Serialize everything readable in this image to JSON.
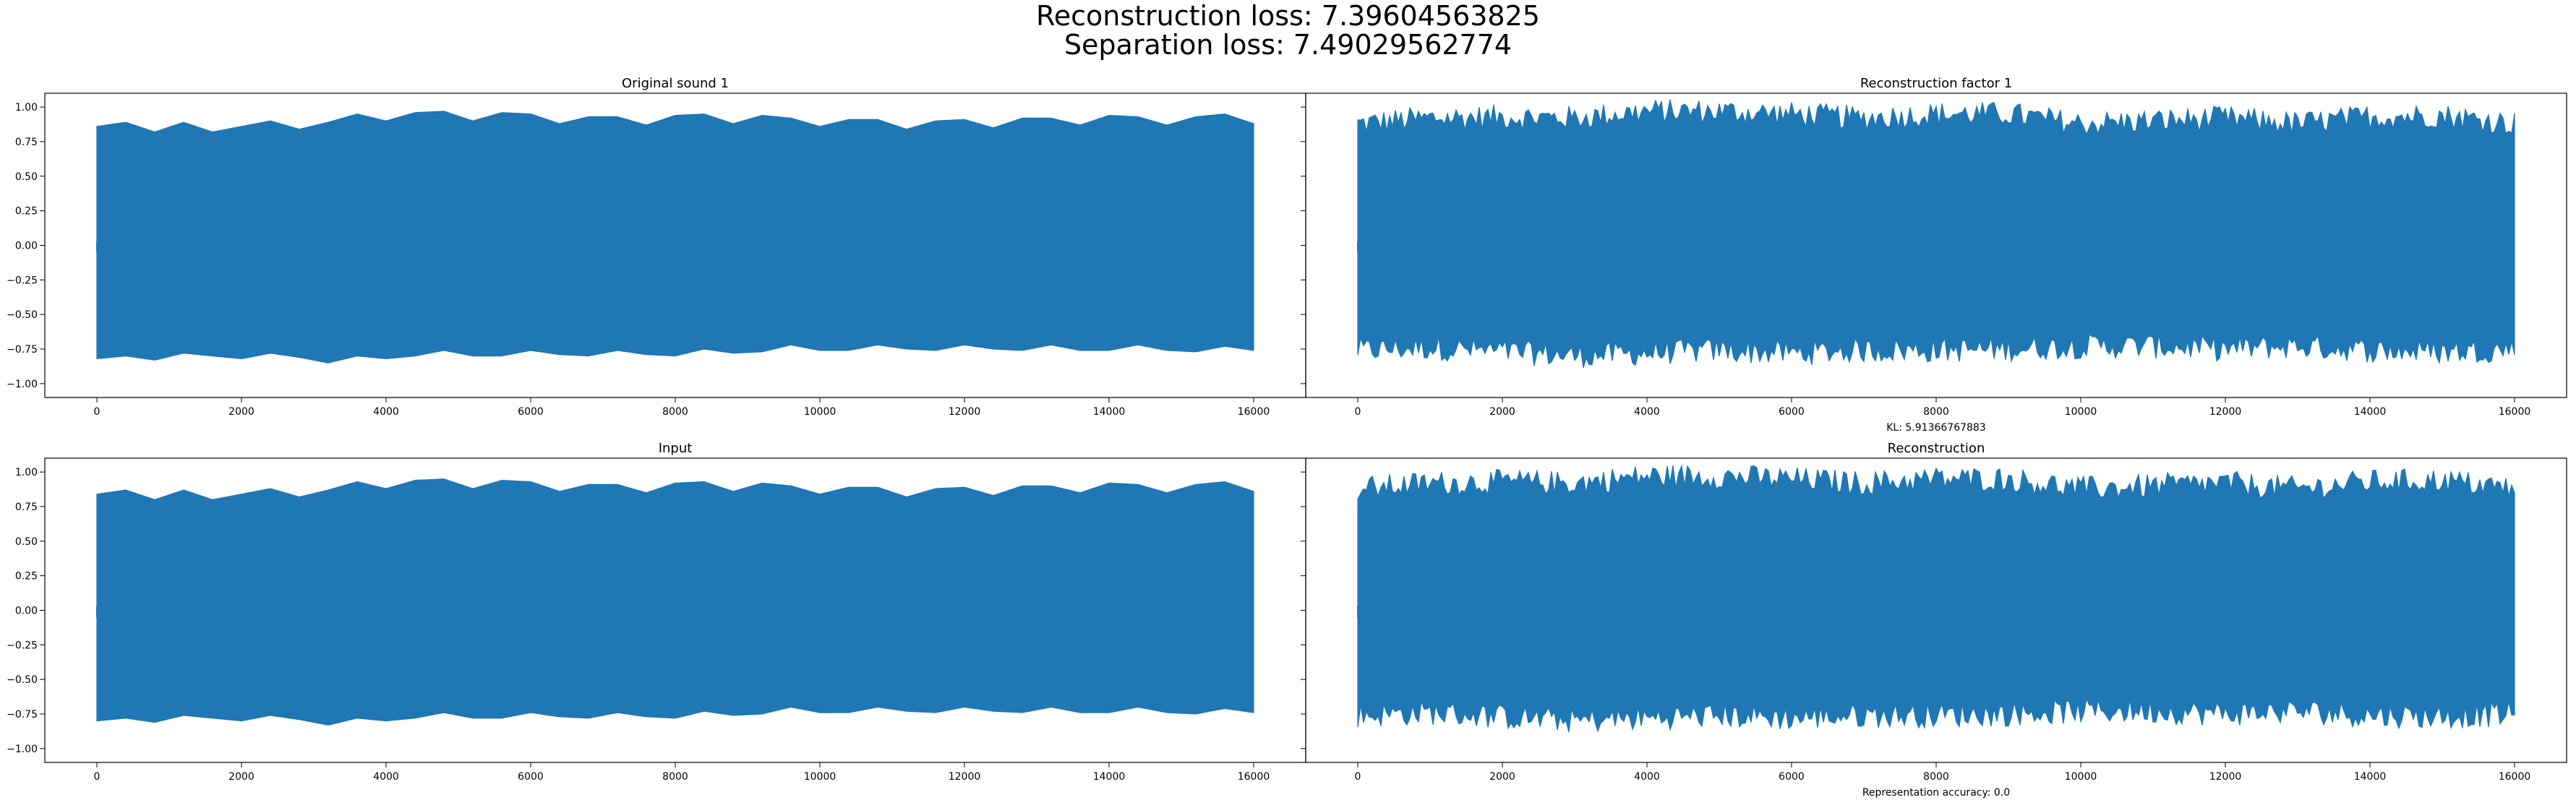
{
  "figure": {
    "suptitle_line1": "Reconstruction loss: 7.39604563825",
    "suptitle_line2": "Separation loss: 7.49029562774",
    "line_color": "#1f77b4"
  },
  "chart_data": [
    {
      "type": "line",
      "title": "Original sound 1",
      "xlabel": "",
      "ylabel": "",
      "xlim": [
        -720,
        16720
      ],
      "ylim": [
        -1.1,
        1.1
      ],
      "xticks": [
        0,
        2000,
        4000,
        6000,
        8000,
        10000,
        12000,
        14000,
        16000
      ],
      "yticks": [
        -1.0,
        -0.75,
        -0.5,
        -0.25,
        0.0,
        0.25,
        0.5,
        0.75,
        1.0
      ],
      "ytick_labels": [
        "−1.00",
        "−0.75",
        "−0.50",
        "−0.25",
        "0.00",
        "0.25",
        "0.50",
        "0.75",
        "1.00"
      ],
      "x_range": [
        0,
        16000
      ],
      "envelope_top": [
        [
          0,
          0.86
        ],
        [
          400,
          0.89
        ],
        [
          800,
          0.82
        ],
        [
          1200,
          0.89
        ],
        [
          1600,
          0.82
        ],
        [
          2000,
          0.86
        ],
        [
          2400,
          0.9
        ],
        [
          2800,
          0.84
        ],
        [
          3200,
          0.89
        ],
        [
          3600,
          0.95
        ],
        [
          4000,
          0.9
        ],
        [
          4400,
          0.96
        ],
        [
          4800,
          0.97
        ],
        [
          5200,
          0.9
        ],
        [
          5600,
          0.96
        ],
        [
          6000,
          0.95
        ],
        [
          6400,
          0.88
        ],
        [
          6800,
          0.93
        ],
        [
          7200,
          0.93
        ],
        [
          7600,
          0.87
        ],
        [
          8000,
          0.94
        ],
        [
          8400,
          0.95
        ],
        [
          8800,
          0.88
        ],
        [
          9200,
          0.94
        ],
        [
          9600,
          0.92
        ],
        [
          10000,
          0.86
        ],
        [
          10400,
          0.91
        ],
        [
          10800,
          0.91
        ],
        [
          11200,
          0.84
        ],
        [
          11600,
          0.9
        ],
        [
          12000,
          0.91
        ],
        [
          12400,
          0.85
        ],
        [
          12800,
          0.92
        ],
        [
          13200,
          0.92
        ],
        [
          13600,
          0.87
        ],
        [
          14000,
          0.94
        ],
        [
          14400,
          0.93
        ],
        [
          14800,
          0.87
        ],
        [
          15200,
          0.93
        ],
        [
          15600,
          0.95
        ],
        [
          16000,
          0.88
        ]
      ],
      "envelope_bottom": [
        [
          0,
          -0.82
        ],
        [
          400,
          -0.8
        ],
        [
          800,
          -0.83
        ],
        [
          1200,
          -0.78
        ],
        [
          1600,
          -0.8
        ],
        [
          2000,
          -0.82
        ],
        [
          2400,
          -0.78
        ],
        [
          2800,
          -0.81
        ],
        [
          3200,
          -0.85
        ],
        [
          3600,
          -0.8
        ],
        [
          4000,
          -0.82
        ],
        [
          4400,
          -0.8
        ],
        [
          4800,
          -0.76
        ],
        [
          5200,
          -0.8
        ],
        [
          5600,
          -0.8
        ],
        [
          6000,
          -0.76
        ],
        [
          6400,
          -0.79
        ],
        [
          6800,
          -0.8
        ],
        [
          7200,
          -0.76
        ],
        [
          7600,
          -0.79
        ],
        [
          8000,
          -0.8
        ],
        [
          8400,
          -0.75
        ],
        [
          8800,
          -0.78
        ],
        [
          9200,
          -0.77
        ],
        [
          9600,
          -0.72
        ],
        [
          10000,
          -0.76
        ],
        [
          10400,
          -0.76
        ],
        [
          10800,
          -0.72
        ],
        [
          11200,
          -0.75
        ],
        [
          11600,
          -0.76
        ],
        [
          12000,
          -0.72
        ],
        [
          12400,
          -0.75
        ],
        [
          12800,
          -0.76
        ],
        [
          13200,
          -0.72
        ],
        [
          13600,
          -0.76
        ],
        [
          14000,
          -0.76
        ],
        [
          14400,
          -0.72
        ],
        [
          14800,
          -0.76
        ],
        [
          15200,
          -0.77
        ],
        [
          15600,
          -0.73
        ],
        [
          16000,
          -0.76
        ]
      ],
      "noise": 0.0,
      "caption": ""
    },
    {
      "type": "line",
      "title": "Reconstruction factor 1",
      "xlabel": "",
      "ylabel": "",
      "xlim": [
        -720,
        16720
      ],
      "ylim": [
        -1.1,
        1.1
      ],
      "xticks": [
        0,
        2000,
        4000,
        6000,
        8000,
        10000,
        12000,
        14000,
        16000
      ],
      "yticks": [],
      "ytick_labels": [],
      "x_range": [
        0,
        16000
      ],
      "envelope_top": [
        [
          0,
          0.88
        ],
        [
          1000,
          0.92
        ],
        [
          2000,
          0.93
        ],
        [
          3000,
          0.92
        ],
        [
          4000,
          0.97
        ],
        [
          5000,
          0.97
        ],
        [
          6000,
          0.95
        ],
        [
          7000,
          0.92
        ],
        [
          8000,
          0.95
        ],
        [
          9000,
          0.95
        ],
        [
          10000,
          0.88
        ],
        [
          11000,
          0.9
        ],
        [
          12000,
          0.92
        ],
        [
          13000,
          0.88
        ],
        [
          14000,
          0.93
        ],
        [
          15000,
          0.94
        ],
        [
          16000,
          0.88
        ]
      ],
      "envelope_bottom": [
        [
          0,
          -0.76
        ],
        [
          1000,
          -0.74
        ],
        [
          2000,
          -0.77
        ],
        [
          3000,
          -0.8
        ],
        [
          4000,
          -0.78
        ],
        [
          5000,
          -0.76
        ],
        [
          6000,
          -0.78
        ],
        [
          7000,
          -0.76
        ],
        [
          8000,
          -0.76
        ],
        [
          9000,
          -0.75
        ],
        [
          10000,
          -0.73
        ],
        [
          11000,
          -0.73
        ],
        [
          12000,
          -0.75
        ],
        [
          13000,
          -0.73
        ],
        [
          14000,
          -0.76
        ],
        [
          15000,
          -0.77
        ],
        [
          16000,
          -0.75
        ]
      ],
      "noise": 0.09,
      "caption": "KL: 5.91366767883"
    },
    {
      "type": "line",
      "title": "Input",
      "xlabel": "",
      "ylabel": "",
      "xlim": [
        -720,
        16720
      ],
      "ylim": [
        -1.1,
        1.1
      ],
      "xticks": [
        0,
        2000,
        4000,
        6000,
        8000,
        10000,
        12000,
        14000,
        16000
      ],
      "yticks": [
        -1.0,
        -0.75,
        -0.5,
        -0.25,
        0.0,
        0.25,
        0.5,
        0.75,
        1.0
      ],
      "ytick_labels": [
        "−1.00",
        "−0.75",
        "−0.50",
        "−0.25",
        "0.00",
        "0.25",
        "0.50",
        "0.75",
        "1.00"
      ],
      "x_range": [
        0,
        16000
      ],
      "envelope_top": [
        [
          0,
          0.84
        ],
        [
          400,
          0.87
        ],
        [
          800,
          0.8
        ],
        [
          1200,
          0.87
        ],
        [
          1600,
          0.8
        ],
        [
          2000,
          0.84
        ],
        [
          2400,
          0.88
        ],
        [
          2800,
          0.82
        ],
        [
          3200,
          0.87
        ],
        [
          3600,
          0.93
        ],
        [
          4000,
          0.88
        ],
        [
          4400,
          0.94
        ],
        [
          4800,
          0.95
        ],
        [
          5200,
          0.88
        ],
        [
          5600,
          0.94
        ],
        [
          6000,
          0.93
        ],
        [
          6400,
          0.86
        ],
        [
          6800,
          0.91
        ],
        [
          7200,
          0.91
        ],
        [
          7600,
          0.85
        ],
        [
          8000,
          0.92
        ],
        [
          8400,
          0.93
        ],
        [
          8800,
          0.86
        ],
        [
          9200,
          0.92
        ],
        [
          9600,
          0.9
        ],
        [
          10000,
          0.84
        ],
        [
          10400,
          0.89
        ],
        [
          10800,
          0.89
        ],
        [
          11200,
          0.82
        ],
        [
          11600,
          0.88
        ],
        [
          12000,
          0.89
        ],
        [
          12400,
          0.83
        ],
        [
          12800,
          0.9
        ],
        [
          13200,
          0.9
        ],
        [
          13600,
          0.85
        ],
        [
          14000,
          0.92
        ],
        [
          14400,
          0.91
        ],
        [
          14800,
          0.85
        ],
        [
          15200,
          0.91
        ],
        [
          15600,
          0.93
        ],
        [
          16000,
          0.86
        ]
      ],
      "envelope_bottom": [
        [
          0,
          -0.8
        ],
        [
          400,
          -0.78
        ],
        [
          800,
          -0.81
        ],
        [
          1200,
          -0.76
        ],
        [
          1600,
          -0.78
        ],
        [
          2000,
          -0.8
        ],
        [
          2400,
          -0.76
        ],
        [
          2800,
          -0.79
        ],
        [
          3200,
          -0.83
        ],
        [
          3600,
          -0.78
        ],
        [
          4000,
          -0.8
        ],
        [
          4400,
          -0.78
        ],
        [
          4800,
          -0.74
        ],
        [
          5200,
          -0.78
        ],
        [
          5600,
          -0.78
        ],
        [
          6000,
          -0.74
        ],
        [
          6400,
          -0.77
        ],
        [
          6800,
          -0.78
        ],
        [
          7200,
          -0.74
        ],
        [
          7600,
          -0.77
        ],
        [
          8000,
          -0.78
        ],
        [
          8400,
          -0.73
        ],
        [
          8800,
          -0.76
        ],
        [
          9200,
          -0.75
        ],
        [
          9600,
          -0.7
        ],
        [
          10000,
          -0.74
        ],
        [
          10400,
          -0.74
        ],
        [
          10800,
          -0.7
        ],
        [
          11200,
          -0.73
        ],
        [
          11600,
          -0.74
        ],
        [
          12000,
          -0.7
        ],
        [
          12400,
          -0.73
        ],
        [
          12800,
          -0.74
        ],
        [
          13200,
          -0.7
        ],
        [
          13600,
          -0.74
        ],
        [
          14000,
          -0.74
        ],
        [
          14400,
          -0.7
        ],
        [
          14800,
          -0.74
        ],
        [
          15200,
          -0.75
        ],
        [
          15600,
          -0.71
        ],
        [
          16000,
          -0.74
        ]
      ],
      "noise": 0.0,
      "caption": ""
    },
    {
      "type": "line",
      "title": "Reconstruction",
      "xlabel": "",
      "ylabel": "",
      "xlim": [
        -720,
        16720
      ],
      "ylim": [
        -1.1,
        1.1
      ],
      "xticks": [
        0,
        2000,
        4000,
        6000,
        8000,
        10000,
        12000,
        14000,
        16000
      ],
      "yticks": [],
      "ytick_labels": [],
      "x_range": [
        0,
        16000
      ],
      "envelope_top": [
        [
          0,
          0.88
        ],
        [
          1000,
          0.92
        ],
        [
          2000,
          0.93
        ],
        [
          3000,
          0.92
        ],
        [
          4000,
          0.97
        ],
        [
          5000,
          0.97
        ],
        [
          6000,
          0.95
        ],
        [
          7000,
          0.92
        ],
        [
          8000,
          0.95
        ],
        [
          9000,
          0.95
        ],
        [
          10000,
          0.88
        ],
        [
          11000,
          0.9
        ],
        [
          12000,
          0.92
        ],
        [
          13000,
          0.88
        ],
        [
          14000,
          0.93
        ],
        [
          15000,
          0.94
        ],
        [
          16000,
          0.88
        ]
      ],
      "envelope_bottom": [
        [
          0,
          -0.76
        ],
        [
          1000,
          -0.74
        ],
        [
          2000,
          -0.77
        ],
        [
          3000,
          -0.8
        ],
        [
          4000,
          -0.78
        ],
        [
          5000,
          -0.76
        ],
        [
          6000,
          -0.78
        ],
        [
          7000,
          -0.76
        ],
        [
          8000,
          -0.76
        ],
        [
          9000,
          -0.75
        ],
        [
          10000,
          -0.73
        ],
        [
          11000,
          -0.73
        ],
        [
          12000,
          -0.75
        ],
        [
          13000,
          -0.73
        ],
        [
          14000,
          -0.76
        ],
        [
          15000,
          -0.77
        ],
        [
          16000,
          -0.75
        ]
      ],
      "noise": 0.09,
      "caption": "Representation accuracy: 0.0"
    }
  ]
}
